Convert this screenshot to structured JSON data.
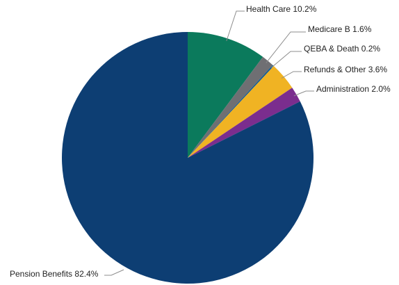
{
  "chart_data": {
    "type": "pie",
    "title": "",
    "start": "12 o'clock",
    "direction": "clockwise",
    "slices": [
      {
        "name": "Health Care",
        "value": 10.2,
        "label": "Health Care 10.2%",
        "color": "#0b7a5c"
      },
      {
        "name": "Medicare B",
        "value": 1.6,
        "label": "Medicare B 1.6%",
        "color": "#6f6f73"
      },
      {
        "name": "QEBA & Death",
        "value": 0.2,
        "label": "QEBA & Death 0.2%",
        "color": "#1a5c8e"
      },
      {
        "name": "Refunds & Other",
        "value": 3.6,
        "label": "Refunds & Other 3.6%",
        "color": "#f0b323"
      },
      {
        "name": "Administration",
        "value": 2.0,
        "label": "Administration 2.0%",
        "color": "#7b2d8e"
      },
      {
        "name": "Pension Benefits",
        "value": 82.4,
        "label": "Pension Benefits 82.4%",
        "color": "#0d3e73"
      }
    ]
  }
}
